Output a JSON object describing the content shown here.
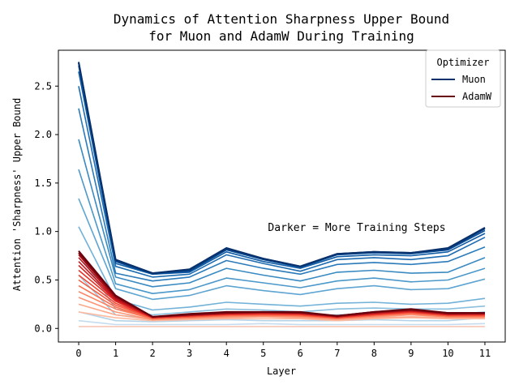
{
  "chart_data": {
    "type": "line",
    "title_lines": [
      "Dynamics of Attention Sharpness Upper Bound",
      "for Muon and AdamW During Training"
    ],
    "xlabel": "Layer",
    "ylabel": "Attention 'Sharpness' Upper Bound",
    "x": [
      0,
      1,
      2,
      3,
      4,
      5,
      6,
      7,
      8,
      9,
      10,
      11
    ],
    "xticks": [
      "0",
      "1",
      "2",
      "3",
      "4",
      "5",
      "6",
      "7",
      "8",
      "9",
      "10",
      "11"
    ],
    "yticks": [
      {
        "value": 0.0,
        "label": "0.0"
      },
      {
        "value": 0.5,
        "label": "0.5"
      },
      {
        "value": 1.0,
        "label": "1.0"
      },
      {
        "value": 1.5,
        "label": "1.5"
      },
      {
        "value": 2.0,
        "label": "2.0"
      },
      {
        "value": 2.5,
        "label": "2.5"
      }
    ],
    "xlim": [
      -0.55,
      11.55
    ],
    "ylim": [
      -0.14,
      2.87
    ],
    "grid": false,
    "legend": {
      "title": "Optimizer",
      "placement": "top-right",
      "entries": [
        {
          "label": "Muon",
          "color": "#08306b"
        },
        {
          "label": "AdamW",
          "color": "#67000d"
        }
      ]
    },
    "annotation": "Darker = More Training Steps",
    "groups": [
      {
        "optimizer": "Muon",
        "color_scale": [
          "#deebf7",
          "#c6dbef",
          "#9ecae1",
          "#6baed6",
          "#4292c6",
          "#2171b5",
          "#08519c",
          "#08306b"
        ],
        "series": [
          {
            "values": [
              0.02,
              0.02,
              0.02,
              0.02,
              0.02,
              0.02,
              0.02,
              0.02,
              0.02,
              0.02,
              0.02,
              0.02
            ]
          },
          {
            "values": [
              0.08,
              0.04,
              0.04,
              0.04,
              0.04,
              0.05,
              0.04,
              0.04,
              0.04,
              0.04,
              0.04,
              0.05
            ]
          },
          {
            "values": [
              0.17,
              0.08,
              0.07,
              0.08,
              0.09,
              0.08,
              0.08,
              0.08,
              0.09,
              0.08,
              0.08,
              0.11
            ]
          },
          {
            "values": [
              0.55,
              0.14,
              0.1,
              0.12,
              0.15,
              0.14,
              0.12,
              0.14,
              0.15,
              0.14,
              0.14,
              0.17
            ]
          },
          {
            "values": [
              0.78,
              0.2,
              0.14,
              0.17,
              0.2,
              0.19,
              0.17,
              0.2,
              0.21,
              0.2,
              0.2,
              0.23
            ]
          },
          {
            "values": [
              1.05,
              0.3,
              0.19,
              0.22,
              0.27,
              0.25,
              0.23,
              0.26,
              0.27,
              0.25,
              0.26,
              0.31
            ]
          },
          {
            "values": [
              1.34,
              0.41,
              0.3,
              0.34,
              0.44,
              0.39,
              0.35,
              0.41,
              0.44,
              0.4,
              0.41,
              0.51
            ]
          },
          {
            "values": [
              1.64,
              0.46,
              0.36,
              0.4,
              0.52,
              0.47,
              0.42,
              0.49,
              0.52,
              0.48,
              0.5,
              0.62
            ]
          },
          {
            "values": [
              1.95,
              0.53,
              0.43,
              0.47,
              0.62,
              0.55,
              0.49,
              0.58,
              0.6,
              0.57,
              0.58,
              0.73
            ]
          },
          {
            "values": [
              2.27,
              0.57,
              0.49,
              0.53,
              0.7,
              0.62,
              0.56,
              0.66,
              0.68,
              0.66,
              0.69,
              0.84
            ]
          },
          {
            "values": [
              2.5,
              0.64,
              0.53,
              0.56,
              0.76,
              0.67,
              0.59,
              0.71,
              0.73,
              0.71,
              0.75,
              0.94
            ]
          },
          {
            "values": [
              2.65,
              0.67,
              0.56,
              0.58,
              0.79,
              0.69,
              0.62,
              0.74,
              0.76,
              0.75,
              0.79,
              0.98
            ]
          },
          {
            "values": [
              2.71,
              0.69,
              0.56,
              0.59,
              0.81,
              0.71,
              0.63,
              0.76,
              0.78,
              0.77,
              0.81,
              1.01
            ]
          },
          {
            "values": [
              2.74,
              0.7,
              0.57,
              0.6,
              0.82,
              0.72,
              0.64,
              0.77,
              0.79,
              0.78,
              0.82,
              1.03
            ]
          },
          {
            "values": [
              2.75,
              0.71,
              0.57,
              0.61,
              0.83,
              0.72,
              0.64,
              0.77,
              0.79,
              0.78,
              0.83,
              1.04
            ]
          }
        ]
      },
      {
        "optimizer": "AdamW",
        "color_scale": [
          "#fee0d2",
          "#fcbba1",
          "#fc9272",
          "#fb6a4a",
          "#ef3b2c",
          "#cb181d",
          "#a50f15",
          "#67000d"
        ],
        "series": [
          {
            "values": [
              0.02,
              0.02,
              0.02,
              0.02,
              0.02,
              0.02,
              0.02,
              0.02,
              0.02,
              0.02,
              0.02,
              0.02
            ]
          },
          {
            "values": [
              0.17,
              0.11,
              0.08,
              0.09,
              0.1,
              0.1,
              0.1,
              0.08,
              0.1,
              0.11,
              0.1,
              0.1
            ]
          },
          {
            "values": [
              0.25,
              0.14,
              0.09,
              0.1,
              0.11,
              0.12,
              0.11,
              0.09,
              0.11,
              0.12,
              0.11,
              0.11
            ]
          },
          {
            "values": [
              0.32,
              0.17,
              0.09,
              0.11,
              0.12,
              0.13,
              0.12,
              0.1,
              0.12,
              0.14,
              0.12,
              0.12
            ]
          },
          {
            "values": [
              0.38,
              0.2,
              0.1,
              0.11,
              0.13,
              0.13,
              0.13,
              0.1,
              0.13,
              0.15,
              0.12,
              0.12
            ]
          },
          {
            "values": [
              0.44,
              0.22,
              0.1,
              0.12,
              0.13,
              0.14,
              0.13,
              0.11,
              0.13,
              0.16,
              0.13,
              0.13
            ]
          },
          {
            "values": [
              0.5,
              0.24,
              0.11,
              0.12,
              0.14,
              0.14,
              0.14,
              0.11,
              0.14,
              0.16,
              0.13,
              0.13
            ]
          },
          {
            "values": [
              0.55,
              0.26,
              0.11,
              0.13,
              0.14,
              0.15,
              0.14,
              0.11,
              0.14,
              0.17,
              0.14,
              0.14
            ]
          },
          {
            "values": [
              0.6,
              0.28,
              0.11,
              0.13,
              0.15,
              0.15,
              0.15,
              0.12,
              0.15,
              0.17,
              0.14,
              0.14
            ]
          },
          {
            "values": [
              0.65,
              0.29,
              0.11,
              0.13,
              0.15,
              0.16,
              0.15,
              0.12,
              0.15,
              0.18,
              0.14,
              0.15
            ]
          },
          {
            "values": [
              0.69,
              0.3,
              0.12,
              0.14,
              0.15,
              0.16,
              0.16,
              0.12,
              0.16,
              0.18,
              0.15,
              0.15
            ]
          },
          {
            "values": [
              0.73,
              0.31,
              0.12,
              0.14,
              0.16,
              0.16,
              0.16,
              0.12,
              0.16,
              0.19,
              0.15,
              0.15
            ]
          },
          {
            "values": [
              0.76,
              0.32,
              0.12,
              0.14,
              0.16,
              0.17,
              0.16,
              0.13,
              0.16,
              0.19,
              0.15,
              0.16
            ]
          },
          {
            "values": [
              0.78,
              0.33,
              0.12,
              0.14,
              0.16,
              0.17,
              0.16,
              0.13,
              0.17,
              0.19,
              0.16,
              0.16
            ]
          },
          {
            "values": [
              0.8,
              0.34,
              0.12,
              0.15,
              0.17,
              0.17,
              0.17,
              0.13,
              0.17,
              0.2,
              0.16,
              0.16
            ]
          }
        ]
      }
    ]
  }
}
